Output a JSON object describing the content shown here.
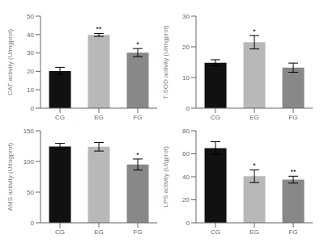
{
  "chart_data": [
    {
      "type": "bar",
      "ylabel": "CAT activity (U/mgprot)",
      "categories": [
        "CG",
        "EG",
        "FG"
      ],
      "values": [
        20.2,
        39.8,
        30.2
      ],
      "errors": [
        2.0,
        0.8,
        2.2
      ],
      "colors": [
        "#111111",
        "#b8b8b8",
        "#888888"
      ],
      "ylim": [
        0,
        50
      ],
      "yticks": [
        0,
        10,
        20,
        30,
        40,
        50
      ],
      "annotations": [
        {
          "category": "EG",
          "text": "**"
        },
        {
          "category": "FG",
          "text": "*"
        }
      ],
      "grid": false
    },
    {
      "type": "bar",
      "ylabel": "T-SOD activity (U/mgprot)",
      "categories": [
        "CG",
        "EG",
        "FG"
      ],
      "values": [
        14.8,
        21.5,
        13.2
      ],
      "errors": [
        1.0,
        2.2,
        1.5
      ],
      "colors": [
        "#111111",
        "#b8b8b8",
        "#888888"
      ],
      "ylim": [
        0,
        30
      ],
      "yticks": [
        0,
        10,
        20,
        30
      ],
      "annotations": [
        {
          "category": "EG",
          "text": "*"
        }
      ],
      "grid": false
    },
    {
      "type": "bar",
      "ylabel": "AMS activity (U/mgprot)",
      "categories": [
        "CG",
        "EG",
        "FG"
      ],
      "values": [
        124.5,
        124.0,
        95.0
      ],
      "errors": [
        5.0,
        7.0,
        9.0
      ],
      "colors": [
        "#111111",
        "#b8b8b8",
        "#888888"
      ],
      "ylim": [
        0,
        150
      ],
      "yticks": [
        0,
        50,
        100,
        150
      ],
      "annotations": [
        {
          "category": "FG",
          "text": "*"
        }
      ],
      "grid": false
    },
    {
      "type": "bar",
      "ylabel": "LPS activity (U/gprot)",
      "categories": [
        "CG",
        "EG",
        "FG"
      ],
      "values": [
        65.0,
        40.5,
        37.5
      ],
      "errors": [
        5.5,
        5.5,
        3.0
      ],
      "colors": [
        "#111111",
        "#b8b8b8",
        "#888888"
      ],
      "ylim": [
        0,
        80
      ],
      "yticks": [
        0,
        20,
        40,
        60,
        80
      ],
      "annotations": [
        {
          "category": "EG",
          "text": "*"
        },
        {
          "category": "FG",
          "text": "**"
        }
      ],
      "grid": false
    }
  ]
}
